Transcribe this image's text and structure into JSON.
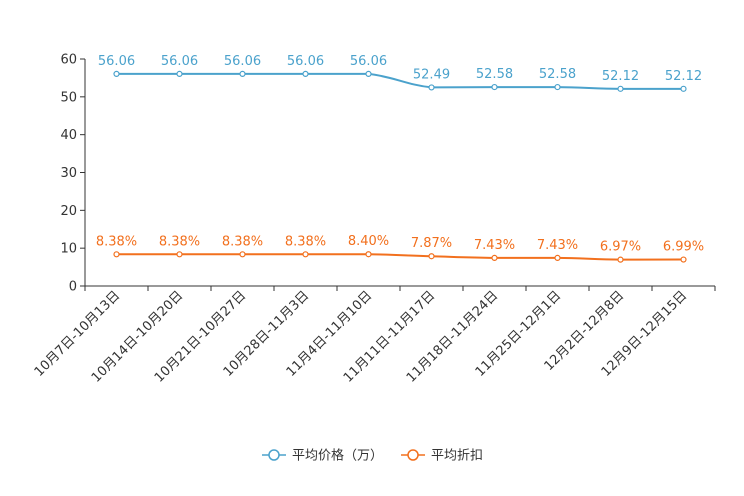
{
  "chart_data": {
    "type": "line",
    "title": "",
    "xlabel": "",
    "ylabel": "",
    "ylim": [
      0,
      60
    ],
    "yticks": [
      "0",
      "10",
      "20",
      "30",
      "40",
      "50",
      "60"
    ],
    "categories": [
      "10月7日-10月13日",
      "10月14日-10月20日",
      "10月21日-10月27日",
      "10月28日-11月3日",
      "11月4日-11月10日",
      "11月11日-11月17日",
      "11月18日-11月24日",
      "11月25日-12月1日",
      "12月2日-12月8日",
      "12月9日-12月15日"
    ],
    "series": [
      {
        "name": "平均价格（万）",
        "color": "#4ba2cc",
        "values": [
          56.06,
          56.06,
          56.06,
          56.06,
          56.06,
          52.49,
          52.58,
          52.58,
          52.12,
          52.12
        ],
        "labels": [
          "56.06",
          "56.06",
          "56.06",
          "56.06",
          "56.06",
          "52.49",
          "52.58",
          "52.58",
          "52.12",
          "52.12"
        ]
      },
      {
        "name": "平均折扣",
        "color": "#f2701e",
        "values": [
          8.38,
          8.38,
          8.38,
          8.38,
          8.4,
          7.87,
          7.43,
          7.43,
          6.97,
          6.99
        ],
        "labels": [
          "8.38%",
          "8.38%",
          "8.38%",
          "8.38%",
          "8.40%",
          "7.87%",
          "7.43%",
          "7.43%",
          "6.97%",
          "6.99%"
        ]
      }
    ],
    "legend_position": "bottom-center",
    "grid": false
  }
}
